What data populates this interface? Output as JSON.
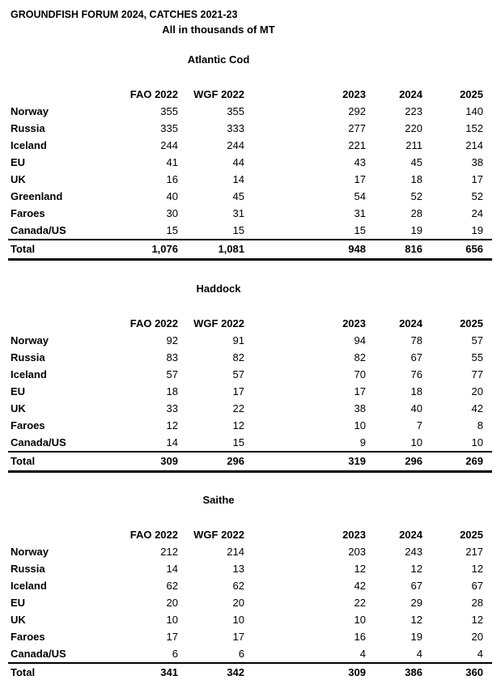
{
  "page": {
    "title": "GROUNDFISH FORUM 2024, CATCHES 2021-23",
    "subtitle": "All in thousands of MT"
  },
  "columns": [
    "FAO 2022",
    "WGF 2022",
    "2023",
    "2024",
    "2025"
  ],
  "tables": [
    {
      "name": "Atlantic Cod",
      "rows": [
        {
          "label": "Norway",
          "values": [
            "355",
            "355",
            "292",
            "223",
            "140"
          ]
        },
        {
          "label": "Russia",
          "values": [
            "335",
            "333",
            "277",
            "220",
            "152"
          ]
        },
        {
          "label": "Iceland",
          "values": [
            "244",
            "244",
            "221",
            "211",
            "214"
          ]
        },
        {
          "label": "EU",
          "values": [
            "41",
            "44",
            "43",
            "45",
            "38"
          ]
        },
        {
          "label": "UK",
          "values": [
            "16",
            "14",
            "17",
            "18",
            "17"
          ]
        },
        {
          "label": "Greenland",
          "values": [
            "40",
            "45",
            "54",
            "52",
            "52"
          ]
        },
        {
          "label": "Faroes",
          "values": [
            "30",
            "31",
            "31",
            "28",
            "24"
          ]
        },
        {
          "label": "Canada/US",
          "values": [
            "15",
            "15",
            "15",
            "19",
            "19"
          ]
        }
      ],
      "total": {
        "label": "Total",
        "values": [
          "1,076",
          "1,081",
          "948",
          "816",
          "656"
        ]
      }
    },
    {
      "name": "Haddock",
      "rows": [
        {
          "label": "Norway",
          "values": [
            "92",
            "91",
            "94",
            "78",
            "57"
          ]
        },
        {
          "label": "Russia",
          "values": [
            "83",
            "82",
            "82",
            "67",
            "55"
          ]
        },
        {
          "label": "Iceland",
          "values": [
            "57",
            "57",
            "70",
            "76",
            "77"
          ]
        },
        {
          "label": "EU",
          "values": [
            "18",
            "17",
            "17",
            "18",
            "20"
          ]
        },
        {
          "label": "UK",
          "values": [
            "33",
            "22",
            "38",
            "40",
            "42"
          ]
        },
        {
          "label": "Faroes",
          "values": [
            "12",
            "12",
            "10",
            "7",
            "8"
          ]
        },
        {
          "label": "Canada/US",
          "values": [
            "14",
            "15",
            "9",
            "10",
            "10"
          ]
        }
      ],
      "total": {
        "label": "Total",
        "values": [
          "309",
          "296",
          "319",
          "296",
          "269"
        ]
      }
    },
    {
      "name": "Saithe",
      "rows": [
        {
          "label": "Norway",
          "values": [
            "212",
            "214",
            "203",
            "243",
            "217"
          ]
        },
        {
          "label": "Russia",
          "values": [
            "14",
            "13",
            "12",
            "12",
            "12"
          ]
        },
        {
          "label": "Iceland",
          "values": [
            "62",
            "62",
            "42",
            "67",
            "67"
          ]
        },
        {
          "label": "EU",
          "values": [
            "20",
            "20",
            "22",
            "29",
            "28"
          ]
        },
        {
          "label": "UK",
          "values": [
            "10",
            "10",
            "10",
            "12",
            "12"
          ]
        },
        {
          "label": "Faroes",
          "values": [
            "17",
            "17",
            "16",
            "19",
            "20"
          ]
        },
        {
          "label": "Canada/US",
          "values": [
            "6",
            "6",
            "4",
            "4",
            "4"
          ]
        }
      ],
      "total": {
        "label": "Total",
        "values": [
          "341",
          "342",
          "309",
          "386",
          "360"
        ]
      }
    }
  ]
}
